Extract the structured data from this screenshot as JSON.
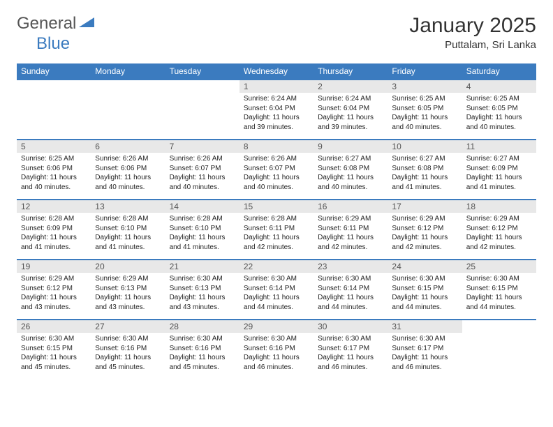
{
  "logo": {
    "part1": "General",
    "part2": "Blue"
  },
  "title": "January 2025",
  "subtitle": "Puttalam, Sri Lanka",
  "header_bg": "#3b7bbf",
  "daynum_bg": "#e8e8e8",
  "row_border": "#3b7bbf",
  "columns": [
    "Sunday",
    "Monday",
    "Tuesday",
    "Wednesday",
    "Thursday",
    "Friday",
    "Saturday"
  ],
  "weeks": [
    [
      null,
      null,
      null,
      {
        "n": "1",
        "sr": "6:24 AM",
        "ss": "6:04 PM",
        "dh": "11",
        "dm": "39"
      },
      {
        "n": "2",
        "sr": "6:24 AM",
        "ss": "6:04 PM",
        "dh": "11",
        "dm": "39"
      },
      {
        "n": "3",
        "sr": "6:25 AM",
        "ss": "6:05 PM",
        "dh": "11",
        "dm": "40"
      },
      {
        "n": "4",
        "sr": "6:25 AM",
        "ss": "6:05 PM",
        "dh": "11",
        "dm": "40"
      }
    ],
    [
      {
        "n": "5",
        "sr": "6:25 AM",
        "ss": "6:06 PM",
        "dh": "11",
        "dm": "40"
      },
      {
        "n": "6",
        "sr": "6:26 AM",
        "ss": "6:06 PM",
        "dh": "11",
        "dm": "40"
      },
      {
        "n": "7",
        "sr": "6:26 AM",
        "ss": "6:07 PM",
        "dh": "11",
        "dm": "40"
      },
      {
        "n": "8",
        "sr": "6:26 AM",
        "ss": "6:07 PM",
        "dh": "11",
        "dm": "40"
      },
      {
        "n": "9",
        "sr": "6:27 AM",
        "ss": "6:08 PM",
        "dh": "11",
        "dm": "40"
      },
      {
        "n": "10",
        "sr": "6:27 AM",
        "ss": "6:08 PM",
        "dh": "11",
        "dm": "41"
      },
      {
        "n": "11",
        "sr": "6:27 AM",
        "ss": "6:09 PM",
        "dh": "11",
        "dm": "41"
      }
    ],
    [
      {
        "n": "12",
        "sr": "6:28 AM",
        "ss": "6:09 PM",
        "dh": "11",
        "dm": "41"
      },
      {
        "n": "13",
        "sr": "6:28 AM",
        "ss": "6:10 PM",
        "dh": "11",
        "dm": "41"
      },
      {
        "n": "14",
        "sr": "6:28 AM",
        "ss": "6:10 PM",
        "dh": "11",
        "dm": "41"
      },
      {
        "n": "15",
        "sr": "6:28 AM",
        "ss": "6:11 PM",
        "dh": "11",
        "dm": "42"
      },
      {
        "n": "16",
        "sr": "6:29 AM",
        "ss": "6:11 PM",
        "dh": "11",
        "dm": "42"
      },
      {
        "n": "17",
        "sr": "6:29 AM",
        "ss": "6:12 PM",
        "dh": "11",
        "dm": "42"
      },
      {
        "n": "18",
        "sr": "6:29 AM",
        "ss": "6:12 PM",
        "dh": "11",
        "dm": "42"
      }
    ],
    [
      {
        "n": "19",
        "sr": "6:29 AM",
        "ss": "6:12 PM",
        "dh": "11",
        "dm": "43"
      },
      {
        "n": "20",
        "sr": "6:29 AM",
        "ss": "6:13 PM",
        "dh": "11",
        "dm": "43"
      },
      {
        "n": "21",
        "sr": "6:30 AM",
        "ss": "6:13 PM",
        "dh": "11",
        "dm": "43"
      },
      {
        "n": "22",
        "sr": "6:30 AM",
        "ss": "6:14 PM",
        "dh": "11",
        "dm": "44"
      },
      {
        "n": "23",
        "sr": "6:30 AM",
        "ss": "6:14 PM",
        "dh": "11",
        "dm": "44"
      },
      {
        "n": "24",
        "sr": "6:30 AM",
        "ss": "6:15 PM",
        "dh": "11",
        "dm": "44"
      },
      {
        "n": "25",
        "sr": "6:30 AM",
        "ss": "6:15 PM",
        "dh": "11",
        "dm": "44"
      }
    ],
    [
      {
        "n": "26",
        "sr": "6:30 AM",
        "ss": "6:15 PM",
        "dh": "11",
        "dm": "45"
      },
      {
        "n": "27",
        "sr": "6:30 AM",
        "ss": "6:16 PM",
        "dh": "11",
        "dm": "45"
      },
      {
        "n": "28",
        "sr": "6:30 AM",
        "ss": "6:16 PM",
        "dh": "11",
        "dm": "45"
      },
      {
        "n": "29",
        "sr": "6:30 AM",
        "ss": "6:16 PM",
        "dh": "11",
        "dm": "46"
      },
      {
        "n": "30",
        "sr": "6:30 AM",
        "ss": "6:17 PM",
        "dh": "11",
        "dm": "46"
      },
      {
        "n": "31",
        "sr": "6:30 AM",
        "ss": "6:17 PM",
        "dh": "11",
        "dm": "46"
      },
      null
    ]
  ]
}
